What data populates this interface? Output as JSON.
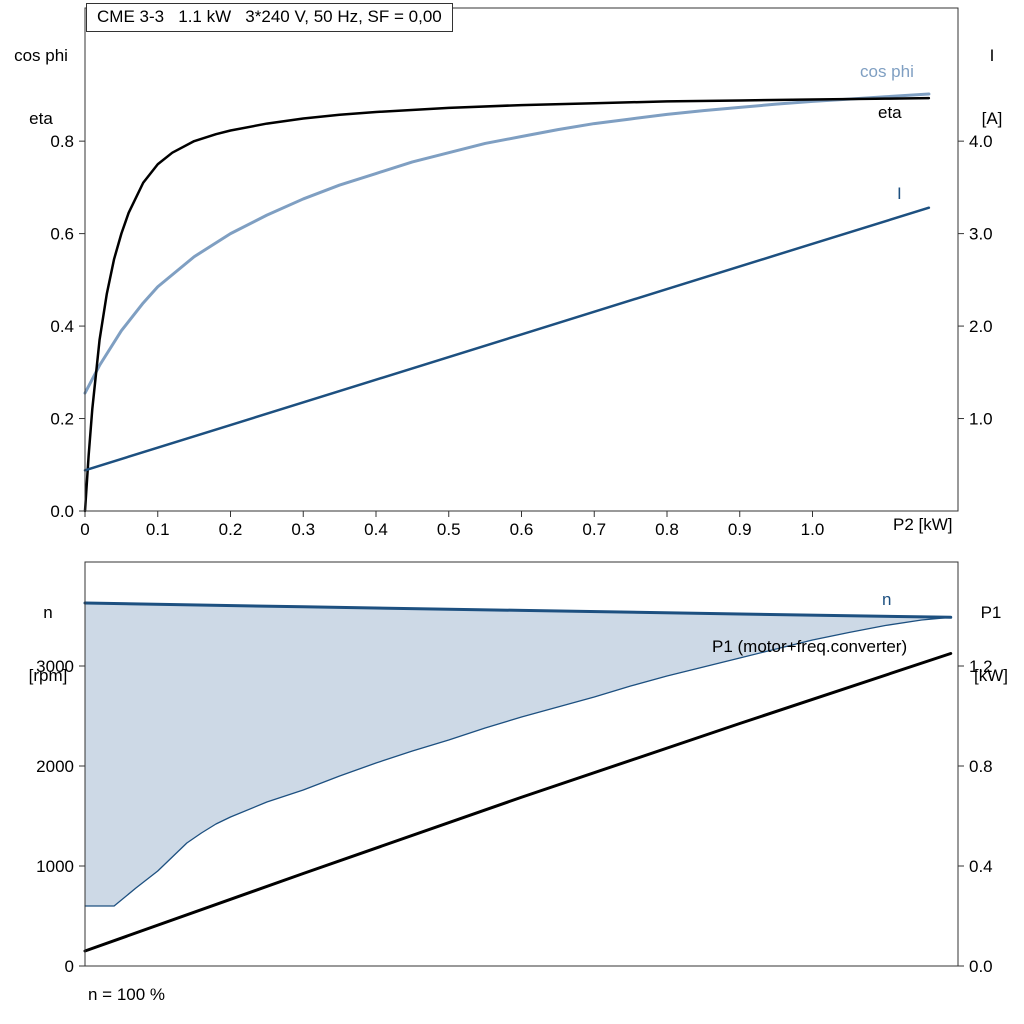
{
  "chart_data": [
    {
      "type": "line",
      "title": "CME 3-3   1.1 kW   3*240 V, 50 Hz, SF = 0,00",
      "xlabel": "P2 [kW]",
      "axis_left_title": [
        "cos phi",
        "eta"
      ],
      "axis_right_title": [
        "I",
        "[A]"
      ],
      "xlim": [
        0,
        1.2
      ],
      "ylim_left": [
        0,
        1.088
      ],
      "ylim_right": [
        0,
        5.44
      ],
      "x_ticks": [
        0,
        0.1,
        0.2,
        0.3,
        0.4,
        0.5,
        0.6,
        0.7,
        0.8,
        0.9,
        1.0
      ],
      "x_tick_labels": [
        "0",
        "0.1",
        "0.2",
        "0.3",
        "0.4",
        "0.5",
        "0.6",
        "0.7",
        "0.8",
        "0.9",
        "1.0"
      ],
      "y_ticks_left": [
        0,
        0.2,
        0.4,
        0.6,
        0.8
      ],
      "y_tick_labels_left": [
        "0.0",
        "0.2",
        "0.4",
        "0.6",
        "0.8"
      ],
      "y_ticks_right": [
        1,
        2,
        3,
        4
      ],
      "y_tick_labels_right": [
        "1.0",
        "2.0",
        "3.0",
        "4.0"
      ],
      "series": [
        {
          "id": "cos_phi",
          "name": "cos phi",
          "axis": "left",
          "color": "#7f9fc2",
          "width": 3,
          "points": [
            [
              0,
              0.255
            ],
            [
              0.02,
              0.315
            ],
            [
              0.05,
              0.39
            ],
            [
              0.08,
              0.45
            ],
            [
              0.1,
              0.485
            ],
            [
              0.15,
              0.55
            ],
            [
              0.2,
              0.6
            ],
            [
              0.25,
              0.64
            ],
            [
              0.3,
              0.675
            ],
            [
              0.35,
              0.705
            ],
            [
              0.4,
              0.73
            ],
            [
              0.45,
              0.755
            ],
            [
              0.5,
              0.775
            ],
            [
              0.55,
              0.795
            ],
            [
              0.6,
              0.81
            ],
            [
              0.65,
              0.825
            ],
            [
              0.7,
              0.838
            ],
            [
              0.75,
              0.848
            ],
            [
              0.8,
              0.858
            ],
            [
              0.85,
              0.866
            ],
            [
              0.9,
              0.873
            ],
            [
              0.95,
              0.88
            ],
            [
              1.0,
              0.886
            ],
            [
              1.05,
              0.891
            ],
            [
              1.1,
              0.896
            ],
            [
              1.16,
              0.902
            ]
          ]
        },
        {
          "id": "eta",
          "name": "eta",
          "axis": "left",
          "color": "#000000",
          "width": 2.5,
          "points": [
            [
              0,
              0
            ],
            [
              0.005,
              0.12
            ],
            [
              0.01,
              0.22
            ],
            [
              0.02,
              0.37
            ],
            [
              0.03,
              0.47
            ],
            [
              0.04,
              0.545
            ],
            [
              0.05,
              0.6
            ],
            [
              0.06,
              0.645
            ],
            [
              0.08,
              0.71
            ],
            [
              0.1,
              0.75
            ],
            [
              0.12,
              0.775
            ],
            [
              0.15,
              0.8
            ],
            [
              0.18,
              0.815
            ],
            [
              0.2,
              0.823
            ],
            [
              0.25,
              0.838
            ],
            [
              0.3,
              0.849
            ],
            [
              0.35,
              0.857
            ],
            [
              0.4,
              0.863
            ],
            [
              0.5,
              0.872
            ],
            [
              0.6,
              0.878
            ],
            [
              0.7,
              0.882
            ],
            [
              0.8,
              0.886
            ],
            [
              0.9,
              0.888
            ],
            [
              1.0,
              0.89
            ],
            [
              1.1,
              0.892
            ],
            [
              1.16,
              0.893
            ]
          ]
        },
        {
          "id": "current",
          "name": "I",
          "axis": "right",
          "color": "#1d5080",
          "width": 2.5,
          "points": [
            [
              0,
              0.44
            ],
            [
              0.2,
              0.93
            ],
            [
              0.4,
              1.42
            ],
            [
              0.6,
              1.91
            ],
            [
              0.8,
              2.4
            ],
            [
              1.0,
              2.89
            ],
            [
              1.16,
              3.28
            ]
          ]
        }
      ]
    },
    {
      "type": "line",
      "note": "n = 100 %",
      "axis_left_title": [
        "n",
        "[rpm]"
      ],
      "axis_right_title": [
        "P1",
        "[kW]"
      ],
      "xlim": [
        0,
        1.2
      ],
      "ylim_left": [
        0,
        4040
      ],
      "ylim_right": [
        0,
        1.616
      ],
      "x_ticks": [],
      "x_tick_labels": [],
      "y_ticks_left": [
        0,
        1000,
        2000,
        3000
      ],
      "y_tick_labels_left": [
        "0",
        "1000",
        "2000",
        "3000"
      ],
      "y_ticks_right": [
        0,
        0.4,
        0.8,
        1.2
      ],
      "y_tick_labels_right": [
        "0.0",
        "0.4",
        "0.8",
        "1.2"
      ],
      "fill_between": {
        "upper": "speed",
        "lower": "speed_lower",
        "color": "#cdd9e6"
      },
      "series": [
        {
          "id": "speed",
          "name": "n",
          "axis": "left",
          "color": "#1d5080",
          "width": 3,
          "points": [
            [
              0,
              3630
            ],
            [
              0.3,
              3592
            ],
            [
              0.6,
              3556
            ],
            [
              0.9,
              3520
            ],
            [
              1.19,
              3487
            ]
          ]
        },
        {
          "id": "speed_lower",
          "name": "",
          "axis": "left",
          "color": "#1d5080",
          "width": 1.3,
          "points": [
            [
              0,
              600
            ],
            [
              0.04,
              600
            ],
            [
              0.07,
              780
            ],
            [
              0.1,
              950
            ],
            [
              0.12,
              1090
            ],
            [
              0.14,
              1230
            ],
            [
              0.16,
              1330
            ],
            [
              0.18,
              1420
            ],
            [
              0.2,
              1490
            ],
            [
              0.25,
              1640
            ],
            [
              0.3,
              1760
            ],
            [
              0.35,
              1900
            ],
            [
              0.4,
              2030
            ],
            [
              0.45,
              2150
            ],
            [
              0.5,
              2260
            ],
            [
              0.55,
              2380
            ],
            [
              0.6,
              2490
            ],
            [
              0.65,
              2590
            ],
            [
              0.7,
              2690
            ],
            [
              0.75,
              2800
            ],
            [
              0.8,
              2900
            ],
            [
              0.85,
              2990
            ],
            [
              0.9,
              3080
            ],
            [
              0.95,
              3170
            ],
            [
              1.0,
              3260
            ],
            [
              1.05,
              3335
            ],
            [
              1.1,
              3405
            ],
            [
              1.15,
              3460
            ],
            [
              1.19,
              3487
            ]
          ]
        },
        {
          "id": "p1",
          "name": "P1 (motor+freq.converter)",
          "axis": "right",
          "color": "#000000",
          "width": 3,
          "points": [
            [
              0,
              0.06
            ],
            [
              0.3,
              0.37
            ],
            [
              0.6,
              0.675
            ],
            [
              0.9,
              0.97
            ],
            [
              1.19,
              1.25
            ]
          ]
        }
      ]
    }
  ]
}
